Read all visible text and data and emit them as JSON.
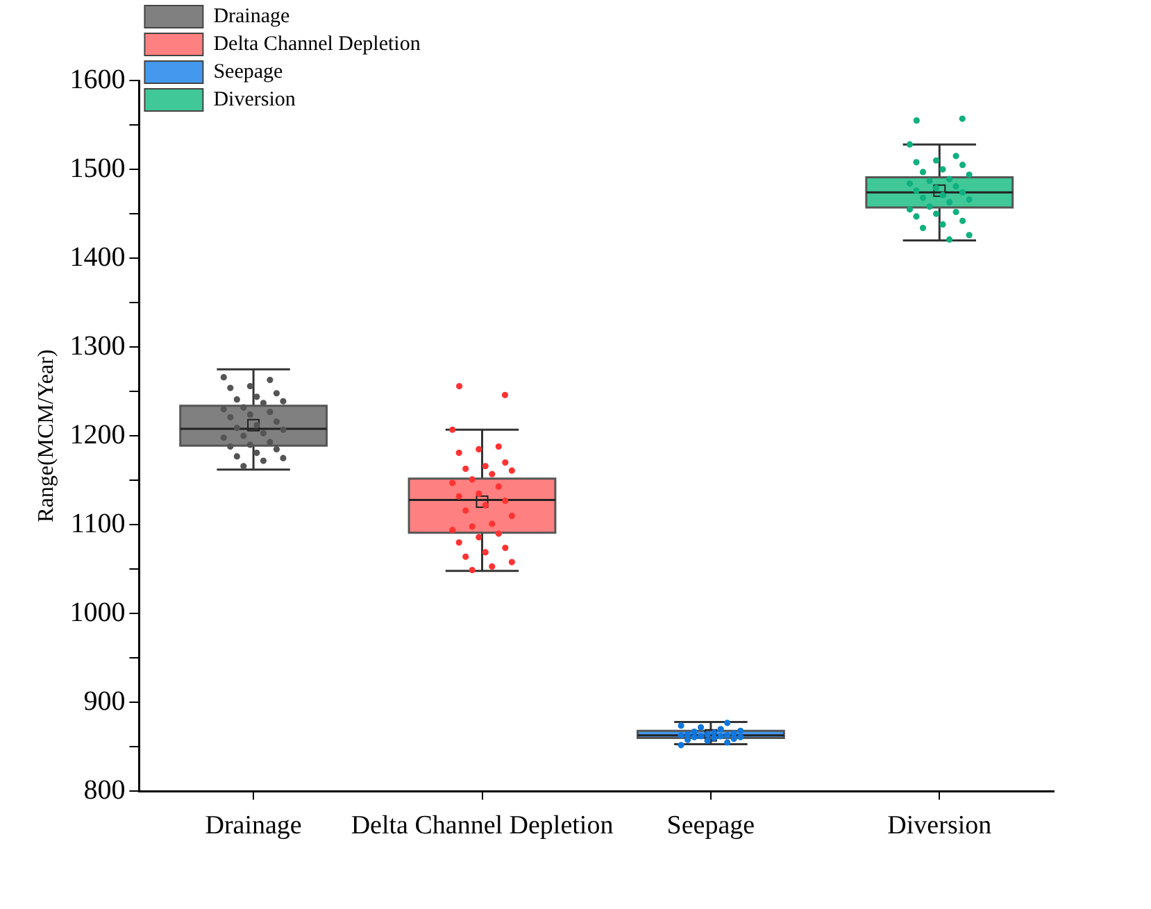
{
  "chart_data": {
    "type": "box",
    "categories": [
      "Drainage",
      "Delta Channel Depletion",
      "Seepage",
      "Diversion"
    ],
    "ylabel": "Range(MCM/Year)",
    "ylim": [
      800,
      1600
    ],
    "yticks": [
      800,
      {
        "value": 850,
        "label": null
      },
      900,
      {
        "value": 950,
        "label": null
      },
      1000,
      {
        "value": 1050,
        "label": null
      },
      1100,
      {
        "value": 1150,
        "label": null
      },
      1200,
      {
        "value": 1250,
        "label": null
      },
      1300,
      {
        "value": 1350,
        "label": null
      },
      1400,
      {
        "value": 1450,
        "label": null
      },
      1500,
      {
        "value": 1550,
        "label": null
      },
      1600
    ],
    "legend": "top left",
    "grid": false,
    "series": [
      {
        "type": "box",
        "name": "Drainage",
        "color": "#808080",
        "boxes": [
          {
            "low": 1162,
            "q1": 1189,
            "median": 1208,
            "q3": 1234,
            "high": 1275,
            "mean": 1212
          },
          null,
          null,
          null
        ]
      },
      {
        "type": "box",
        "name": "Delta Channel Depletion",
        "color": "#ff8080",
        "boxes": [
          null,
          {
            "low": 1048,
            "q1": 1091,
            "median": 1128,
            "q3": 1152,
            "high": 1207,
            "mean": 1126,
            "outliers": [
              1256,
              1246
            ]
          },
          null,
          null
        ]
      },
      {
        "type": "box",
        "name": "Seepage",
        "color": "#4499ee",
        "boxes": [
          null,
          null,
          {
            "low": 853,
            "q1": 860,
            "median": 863,
            "q3": 868,
            "high": 878,
            "mean": 863
          },
          null
        ]
      },
      {
        "type": "box",
        "name": "Diversion",
        "color": "#40c898",
        "boxes": [
          null,
          null,
          null,
          {
            "low": 1420,
            "q1": 1457,
            "median": 1474,
            "q3": 1491,
            "high": 1528,
            "mean": 1476,
            "outliers": [
              1555,
              1557
            ]
          }
        ]
      },
      {
        "type": "scatter",
        "color": "#555555",
        "x": [
          "Drainage",
          "Drainage",
          "Drainage",
          "Drainage",
          "Drainage",
          "Drainage",
          "Drainage",
          "Drainage",
          "Drainage",
          "Drainage",
          "Drainage",
          "Drainage",
          "Drainage",
          "Drainage",
          "Drainage",
          "Drainage",
          "Drainage",
          "Drainage",
          "Drainage",
          "Drainage",
          "Drainage",
          "Drainage",
          "Drainage",
          "Drainage",
          "Drainage",
          "Drainage",
          "Drainage",
          "Drainage",
          "Drainage",
          "Drainage"
        ],
        "values": [
          1266,
          1263,
          1256,
          1254,
          1248,
          1244,
          1241,
          1239,
          1237,
          1232,
          1230,
          1227,
          1224,
          1221,
          1216,
          1212,
          1209,
          1207,
          1203,
          1200,
          1198,
          1193,
          1190,
          1188,
          1185,
          1181,
          1177,
          1175,
          1172,
          1166
        ]
      },
      {
        "type": "scatter",
        "color": "#ff3333",
        "x": [
          "Delta Channel Depletion",
          "Delta Channel Depletion",
          "Delta Channel Depletion",
          "Delta Channel Depletion",
          "Delta Channel Depletion",
          "Delta Channel Depletion",
          "Delta Channel Depletion",
          "Delta Channel Depletion",
          "Delta Channel Depletion",
          "Delta Channel Depletion",
          "Delta Channel Depletion",
          "Delta Channel Depletion",
          "Delta Channel Depletion",
          "Delta Channel Depletion",
          "Delta Channel Depletion",
          "Delta Channel Depletion",
          "Delta Channel Depletion",
          "Delta Channel Depletion",
          "Delta Channel Depletion",
          "Delta Channel Depletion",
          "Delta Channel Depletion",
          "Delta Channel Depletion",
          "Delta Channel Depletion",
          "Delta Channel Depletion",
          "Delta Channel Depletion",
          "Delta Channel Depletion",
          "Delta Channel Depletion",
          "Delta Channel Depletion",
          "Delta Channel Depletion",
          "Delta Channel Depletion"
        ],
        "values": [
          1207,
          1188,
          1185,
          1181,
          1170,
          1166,
          1163,
          1161,
          1157,
          1151,
          1147,
          1143,
          1135,
          1132,
          1127,
          1122,
          1116,
          1110,
          1101,
          1098,
          1094,
          1090,
          1086,
          1080,
          1074,
          1069,
          1064,
          1058,
          1053,
          1049
        ]
      },
      {
        "type": "scatter",
        "color": "#1177dd",
        "x": [
          "Seepage",
          "Seepage",
          "Seepage",
          "Seepage",
          "Seepage",
          "Seepage",
          "Seepage",
          "Seepage",
          "Seepage",
          "Seepage",
          "Seepage",
          "Seepage",
          "Seepage",
          "Seepage",
          "Seepage",
          "Seepage",
          "Seepage",
          "Seepage",
          "Seepage",
          "Seepage",
          "Seepage",
          "Seepage"
        ],
        "values": [
          852,
          855,
          857,
          858,
          859,
          860,
          861,
          861,
          862,
          862,
          863,
          863,
          864,
          864,
          865,
          866,
          867,
          868,
          870,
          872,
          874,
          877
        ]
      },
      {
        "type": "scatter",
        "color": "#10b080",
        "x": [
          "Diversion",
          "Diversion",
          "Diversion",
          "Diversion",
          "Diversion",
          "Diversion",
          "Diversion",
          "Diversion",
          "Diversion",
          "Diversion",
          "Diversion",
          "Diversion",
          "Diversion",
          "Diversion",
          "Diversion",
          "Diversion",
          "Diversion",
          "Diversion",
          "Diversion",
          "Diversion",
          "Diversion",
          "Diversion",
          "Diversion",
          "Diversion",
          "Diversion",
          "Diversion",
          "Diversion",
          "Diversion",
          "Diversion"
        ],
        "values": [
          1528,
          1515,
          1510,
          1508,
          1505,
          1500,
          1497,
          1494,
          1489,
          1487,
          1484,
          1481,
          1479,
          1476,
          1474,
          1471,
          1468,
          1466,
          1463,
          1458,
          1455,
          1452,
          1450,
          1447,
          1442,
          1438,
          1434,
          1426,
          1421
        ]
      }
    ]
  }
}
